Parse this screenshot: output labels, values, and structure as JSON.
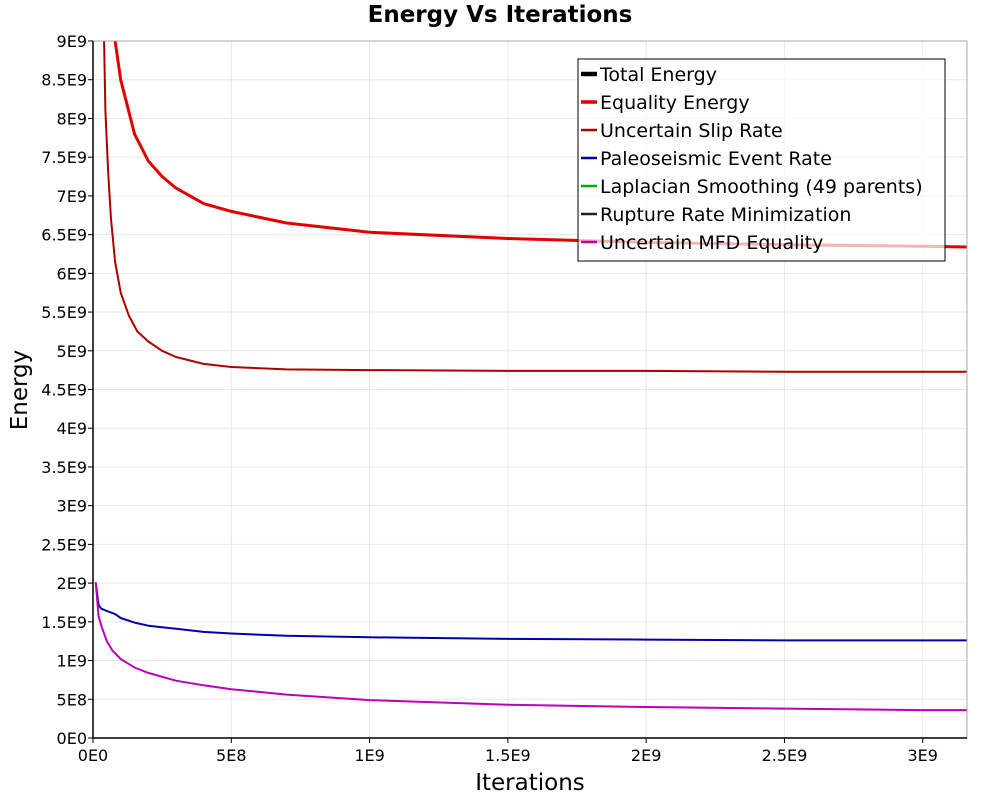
{
  "chart_data": {
    "type": "line",
    "title": "Energy Vs Iterations",
    "xlabel": "Iterations",
    "ylabel": "Energy",
    "xlim": [
      0,
      3160000000
    ],
    "ylim": [
      0,
      9000000000
    ],
    "grid": true,
    "legend_position": "top-right",
    "x_ticks": [
      0,
      500000000,
      1000000000,
      1500000000,
      2000000000,
      2500000000,
      3000000000
    ],
    "x_tick_labels": [
      "0E0",
      "5E8",
      "1E9",
      "1.5E9",
      "2E9",
      "2.5E9",
      "3E9"
    ],
    "y_ticks": [
      0,
      500000000,
      1000000000,
      1500000000,
      2000000000,
      2500000000,
      3000000000,
      3500000000,
      4000000000,
      4500000000,
      5000000000,
      5500000000,
      6000000000,
      6500000000,
      7000000000,
      7500000000,
      8000000000,
      8500000000,
      9000000000
    ],
    "y_tick_labels": [
      "0E0",
      "5E8",
      "1E9",
      "1.5E9",
      "2E9",
      "2.5E9",
      "3E9",
      "3.5E9",
      "4E9",
      "4.5E9",
      "5E9",
      "5.5E9",
      "6E9",
      "6.5E9",
      "7E9",
      "7.5E9",
      "8E9",
      "8.5E9",
      "9E9"
    ],
    "series": [
      {
        "name": "Total Energy",
        "color": "#000000",
        "width": 4,
        "x": [],
        "y": []
      },
      {
        "name": "Equality Energy",
        "color": "#e00000",
        "width": 3,
        "x": [
          80000000,
          100000000,
          150000000,
          200000000,
          250000000,
          300000000,
          400000000,
          500000000,
          700000000,
          1000000000,
          1500000000,
          2000000000,
          2500000000,
          3000000000,
          3160000000
        ],
        "y": [
          9000000000,
          8500000000,
          7800000000,
          7450000000,
          7250000000,
          7100000000,
          6900000000,
          6800000000,
          6650000000,
          6530000000,
          6450000000,
          6400000000,
          6370000000,
          6350000000,
          6340000000
        ]
      },
      {
        "name": "Uncertain Slip Rate",
        "color": "#aa0000",
        "width": 2,
        "x": [
          40000000,
          45000000,
          55000000,
          65000000,
          80000000,
          100000000,
          130000000,
          160000000,
          200000000,
          250000000,
          300000000,
          400000000,
          500000000,
          700000000,
          1000000000,
          1500000000,
          2000000000,
          2500000000,
          3000000000,
          3160000000
        ],
        "y": [
          9000000000,
          8100000000,
          7300000000,
          6700000000,
          6150000000,
          5750000000,
          5450000000,
          5250000000,
          5120000000,
          5000000000,
          4920000000,
          4830000000,
          4790000000,
          4760000000,
          4750000000,
          4740000000,
          4740000000,
          4730000000,
          4730000000,
          4730000000
        ]
      },
      {
        "name": "Paleoseismic Event Rate",
        "color": "#0000aa",
        "width": 2,
        "x": [
          10000000,
          20000000,
          30000000,
          50000000,
          80000000,
          100000000,
          150000000,
          200000000,
          250000000,
          300000000,
          400000000,
          500000000,
          700000000,
          1000000000,
          1500000000,
          2000000000,
          2500000000,
          3000000000,
          3160000000
        ],
        "y": [
          2000000000,
          1720000000,
          1670000000,
          1640000000,
          1600000000,
          1550000000,
          1490000000,
          1450000000,
          1430000000,
          1410000000,
          1370000000,
          1350000000,
          1320000000,
          1300000000,
          1280000000,
          1270000000,
          1260000000,
          1260000000,
          1260000000
        ]
      },
      {
        "name": "Laplacian Smoothing (49 parents)",
        "color": "#00aa00",
        "width": 2,
        "x": [],
        "y": []
      },
      {
        "name": "Rupture Rate Minimization",
        "color": "#222222",
        "width": 2,
        "x": [],
        "y": []
      },
      {
        "name": "Uncertain MFD Equality",
        "color": "#bb00bb",
        "width": 2,
        "x": [
          10000000,
          20000000,
          30000000,
          50000000,
          70000000,
          100000000,
          150000000,
          200000000,
          300000000,
          400000000,
          500000000,
          700000000,
          1000000000,
          1500000000,
          2000000000,
          2500000000,
          3000000000,
          3160000000
        ],
        "y": [
          2000000000,
          1580000000,
          1450000000,
          1250000000,
          1130000000,
          1020000000,
          910000000,
          840000000,
          740000000,
          680000000,
          630000000,
          560000000,
          490000000,
          430000000,
          400000000,
          380000000,
          360000000,
          360000000
        ]
      }
    ]
  }
}
